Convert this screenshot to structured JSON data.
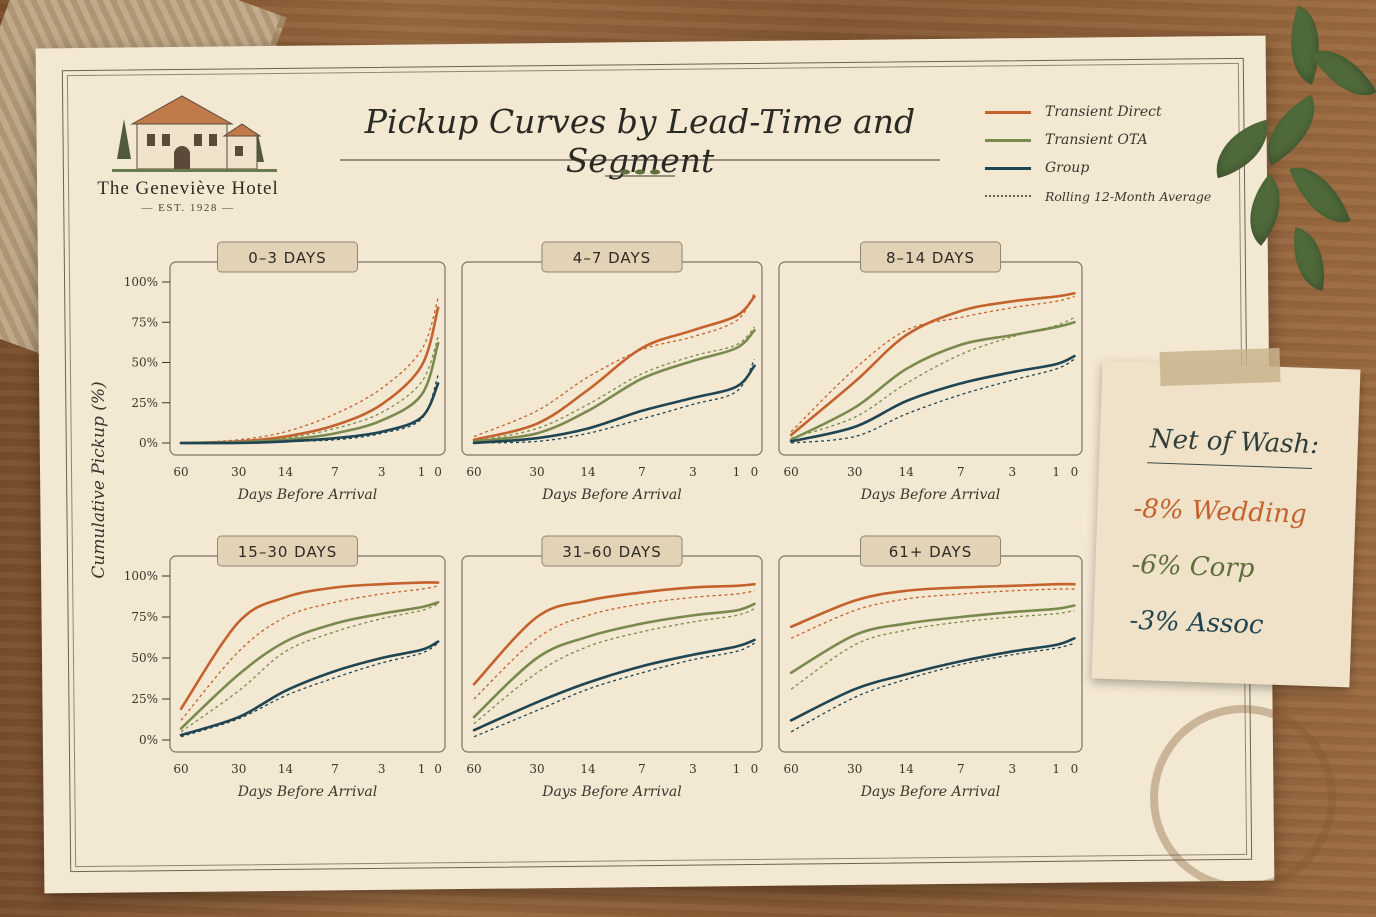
{
  "header": {
    "hotel_name": "The Geneviève Hotel",
    "est": "— EST. 1928 —",
    "title": "Pickup Curves by Lead-Time and Segment"
  },
  "legend": [
    {
      "label": "Transient Direct",
      "color": "#c4622d",
      "style": "solid"
    },
    {
      "label": "Transient OTA",
      "color": "#7a8a4e",
      "style": "solid"
    },
    {
      "label": "Group",
      "color": "#1f4452",
      "style": "solid"
    },
    {
      "label": "Rolling 12-Month Average",
      "color": "#6b6355",
      "style": "dotted"
    }
  ],
  "note": {
    "heading": "Net of Wash:",
    "lines": [
      {
        "text": "-8% Wedding",
        "color": "#c4622d"
      },
      {
        "text": "-6% Corp",
        "color": "#5f6e3c"
      },
      {
        "text": "-3% Assoc",
        "color": "#1f4452"
      }
    ]
  },
  "chart_data": {
    "type": "line",
    "ylabel": "Cumulative Pickup (%)",
    "xlabel": "Days Before Arrival",
    "x_ticks": [
      "60",
      "30",
      "14",
      "7",
      "3",
      "1",
      "0"
    ],
    "y_ticks": [
      "0%",
      "25%",
      "50%",
      "75%",
      "100%"
    ],
    "ylim": [
      0,
      100
    ],
    "grid": false,
    "panels": [
      {
        "title": "0–3 DAYS",
        "series": [
          {
            "name": "Transient Direct",
            "values": [
              0,
              1,
              4,
              11,
              24,
              48,
              84
            ],
            "avg": [
              0,
              2,
              7,
              18,
              34,
              58,
              90
            ]
          },
          {
            "name": "Transient OTA",
            "values": [
              0,
              0.5,
              2,
              6,
              14,
              30,
              62
            ],
            "avg": [
              0,
              1,
              3,
              9,
              19,
              38,
              66
            ]
          },
          {
            "name": "Group",
            "values": [
              0,
              0,
              1,
              3,
              7,
              16,
              37
            ],
            "avg": [
              0,
              0,
              1,
              2,
              6,
              15,
              42
            ]
          }
        ]
      },
      {
        "title": "4–7 DAYS",
        "series": [
          {
            "name": "Transient Direct",
            "values": [
              2,
              12,
              33,
              59,
              70,
              79,
              91
            ],
            "avg": [
              4,
              20,
              41,
              58,
              66,
              76,
              93
            ]
          },
          {
            "name": "Transient OTA",
            "values": [
              1,
              6,
              20,
              40,
              51,
              59,
              70
            ],
            "avg": [
              1,
              9,
              24,
              43,
              54,
              61,
              72
            ]
          },
          {
            "name": "Group",
            "values": [
              0,
              3,
              9,
              20,
              28,
              35,
              48
            ],
            "avg": [
              0,
              1,
              6,
              15,
              24,
              32,
              52
            ]
          }
        ]
      },
      {
        "title": "8–14 DAYS",
        "series": [
          {
            "name": "Transient Direct",
            "values": [
              5,
              38,
              67,
              82,
              88,
              91,
              93
            ],
            "avg": [
              7,
              46,
              70,
              78,
              84,
              88,
              91
            ]
          },
          {
            "name": "Transient OTA",
            "values": [
              2,
              22,
              46,
              61,
              67,
              72,
              75
            ],
            "avg": [
              3,
              16,
              37,
              55,
              66,
              73,
              78
            ]
          },
          {
            "name": "Group",
            "values": [
              1,
              10,
              26,
              37,
              44,
              49,
              54
            ],
            "avg": [
              0,
              4,
              18,
              30,
              39,
              46,
              52
            ]
          }
        ]
      },
      {
        "title": "15–30 DAYS",
        "series": [
          {
            "name": "Transient Direct",
            "values": [
              19,
              72,
              87,
              93,
              95,
              96,
              96
            ],
            "avg": [
              12,
              54,
              75,
              84,
              89,
              92,
              94
            ]
          },
          {
            "name": "Transient OTA",
            "values": [
              7,
              40,
              60,
              71,
              77,
              81,
              84
            ],
            "avg": [
              5,
              30,
              54,
              66,
              74,
              79,
              83
            ]
          },
          {
            "name": "Group",
            "values": [
              3,
              14,
              30,
              42,
              50,
              55,
              60
            ],
            "avg": [
              2,
              13,
              27,
              38,
              47,
              53,
              59
            ]
          }
        ]
      },
      {
        "title": "31–60 DAYS",
        "series": [
          {
            "name": "Transient Direct",
            "values": [
              34,
              75,
              85,
              90,
              93,
              94,
              95
            ],
            "avg": [
              25,
              62,
              76,
              83,
              87,
              89,
              91
            ]
          },
          {
            "name": "Transient OTA",
            "values": [
              14,
              50,
              63,
              71,
              76,
              79,
              83
            ],
            "avg": [
              10,
              41,
              57,
              66,
              72,
              76,
              80
            ]
          },
          {
            "name": "Group",
            "values": [
              6,
              23,
              35,
              45,
              52,
              57,
              61
            ],
            "avg": [
              2,
              18,
              31,
              41,
              49,
              54,
              59
            ]
          }
        ]
      },
      {
        "title": "61+ DAYS",
        "series": [
          {
            "name": "Transient Direct",
            "values": [
              69,
              85,
              91,
              93,
              94,
              95,
              95
            ],
            "avg": [
              62,
              79,
              86,
              89,
              91,
              92,
              92
            ]
          },
          {
            "name": "Transient OTA",
            "values": [
              41,
              64,
              71,
              75,
              78,
              80,
              82
            ],
            "avg": [
              31,
              58,
              67,
              72,
              75,
              77,
              79
            ]
          },
          {
            "name": "Group",
            "values": [
              12,
              31,
              40,
              48,
              54,
              58,
              62
            ],
            "avg": [
              5,
              26,
              37,
              46,
              52,
              56,
              59
            ]
          }
        ]
      }
    ]
  }
}
